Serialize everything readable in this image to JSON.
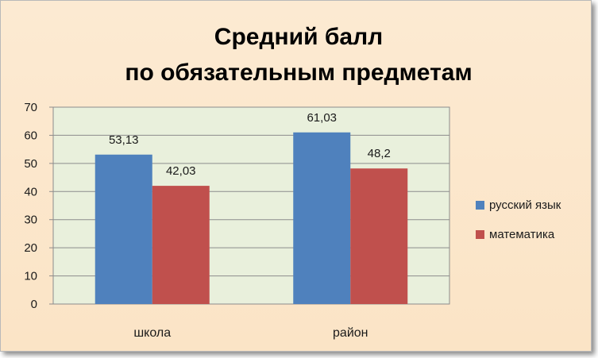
{
  "chart_data": {
    "type": "bar",
    "title_lines": [
      "Средний балл",
      "по обязательным  предметам"
    ],
    "categories": [
      "школа",
      "район"
    ],
    "series": [
      {
        "name": "русский язык",
        "values": [
          53.13,
          61.03
        ],
        "labels": [
          "53,13",
          "61,03"
        ],
        "color": "#4f81bd"
      },
      {
        "name": "математика",
        "values": [
          42.03,
          48.2
        ],
        "labels": [
          "42,03",
          "48,2"
        ],
        "color": "#c0504d"
      }
    ],
    "ylim": [
      0,
      70
    ],
    "yticks": [
      "0",
      "10",
      "20",
      "30",
      "40",
      "50",
      "60",
      "70"
    ],
    "grid": true,
    "legend_position": "right",
    "plot_background": "#e9f0dc",
    "frame_background": "#fbe5c8"
  }
}
